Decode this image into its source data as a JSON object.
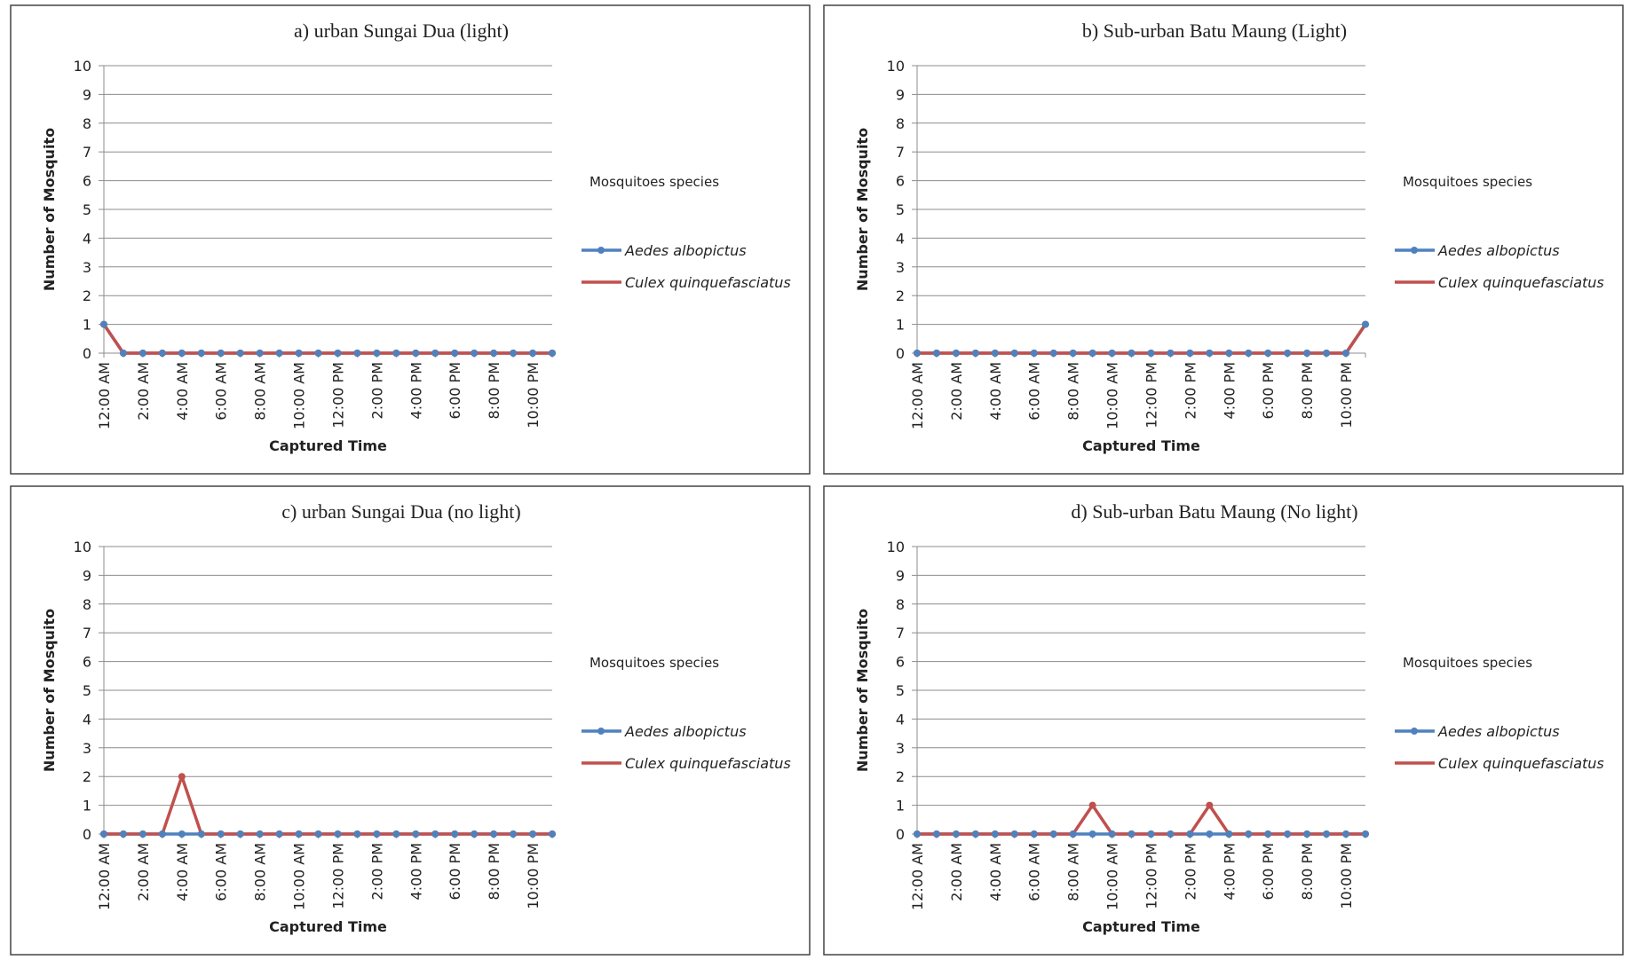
{
  "chart_data": [
    {
      "type": "line",
      "title": "a) urban Sungai Dua (light)",
      "xlabel": "Captured Time",
      "ylabel": "Number of Mosquito",
      "legend_title": "Mosquitoes species",
      "categories": [
        "12:00 AM",
        null,
        "2:00 AM",
        null,
        "4:00 AM",
        null,
        "6:00 AM",
        null,
        "8:00 AM",
        null,
        "10:00 AM",
        null,
        "12:00 PM",
        null,
        "2:00 PM",
        null,
        "4:00 PM",
        null,
        "6:00 PM",
        null,
        "8:00 PM",
        null,
        "10:00 PM",
        null
      ],
      "series": [
        {
          "name": "Aedes albopictus",
          "color": "#4f81bd",
          "values": [
            1,
            0,
            0,
            0,
            0,
            0,
            0,
            0,
            0,
            0,
            0,
            0,
            0,
            0,
            0,
            0,
            0,
            0,
            0,
            0,
            0,
            0,
            0,
            0
          ]
        },
        {
          "name": "Culex quinquefasciatus",
          "color": "#c0504d",
          "values": [
            1,
            0,
            0,
            0,
            0,
            0,
            0,
            0,
            0,
            0,
            0,
            0,
            0,
            0,
            0,
            0,
            0,
            0,
            0,
            0,
            0,
            0,
            0,
            0
          ]
        }
      ],
      "ylim": [
        0,
        10
      ],
      "yticks": [
        0,
        1,
        2,
        3,
        4,
        5,
        6,
        7,
        8,
        9,
        10
      ],
      "grid": true
    },
    {
      "type": "line",
      "title": "b) Sub-urban Batu Maung (Light)",
      "xlabel": "Captured Time",
      "ylabel": "Number of Mosquito",
      "legend_title": "Mosquitoes species",
      "categories": [
        "12:00 AM",
        null,
        "2:00 AM",
        null,
        "4:00 AM",
        null,
        "6:00 AM",
        null,
        "8:00 AM",
        null,
        "10:00 AM",
        null,
        "12:00 PM",
        null,
        "2:00 PM",
        null,
        "4:00 PM",
        null,
        "6:00 PM",
        null,
        "8:00 PM",
        null,
        "10:00 PM",
        null
      ],
      "series": [
        {
          "name": "Aedes albopictus",
          "color": "#4f81bd",
          "values": [
            0,
            0,
            0,
            0,
            0,
            0,
            0,
            0,
            0,
            0,
            0,
            0,
            0,
            0,
            0,
            0,
            0,
            0,
            0,
            0,
            0,
            0,
            0,
            1
          ]
        },
        {
          "name": "Culex quinquefasciatus",
          "color": "#c0504d",
          "values": [
            0,
            0,
            0,
            0,
            0,
            0,
            0,
            0,
            0,
            0,
            0,
            0,
            0,
            0,
            0,
            0,
            0,
            0,
            0,
            0,
            0,
            0,
            0,
            1
          ]
        }
      ],
      "ylim": [
        0,
        10
      ],
      "yticks": [
        0,
        1,
        2,
        3,
        4,
        5,
        6,
        7,
        8,
        9,
        10
      ],
      "grid": true
    },
    {
      "type": "line",
      "title": "c) urban Sungai Dua (no light)",
      "xlabel": "Captured Time",
      "ylabel": "Number of Mosquito",
      "legend_title": "Mosquitoes species",
      "categories": [
        "12:00 AM",
        null,
        "2:00 AM",
        null,
        "4:00 AM",
        null,
        "6:00 AM",
        null,
        "8:00 AM",
        null,
        "10:00 AM",
        null,
        "12:00 PM",
        null,
        "2:00 PM",
        null,
        "4:00 PM",
        null,
        "6:00 PM",
        null,
        "8:00 PM",
        null,
        "10:00 PM",
        null
      ],
      "series": [
        {
          "name": "Aedes albopictus",
          "color": "#4f81bd",
          "values": [
            0,
            0,
            0,
            0,
            0,
            0,
            0,
            0,
            0,
            0,
            0,
            0,
            0,
            0,
            0,
            0,
            0,
            0,
            0,
            0,
            0,
            0,
            0,
            0
          ]
        },
        {
          "name": "Culex quinquefasciatus",
          "color": "#c0504d",
          "values": [
            0,
            0,
            0,
            0,
            2,
            0,
            0,
            0,
            0,
            0,
            0,
            0,
            0,
            0,
            0,
            0,
            0,
            0,
            0,
            0,
            0,
            0,
            0,
            0
          ]
        }
      ],
      "ylim": [
        0,
        10
      ],
      "yticks": [
        0,
        1,
        2,
        3,
        4,
        5,
        6,
        7,
        8,
        9,
        10
      ],
      "grid": true
    },
    {
      "type": "line",
      "title": "d) Sub-urban Batu Maung (No light)",
      "xlabel": "Captured Time",
      "ylabel": "Number of Mosquito",
      "legend_title": "Mosquitoes species",
      "categories": [
        "12:00 AM",
        null,
        "2:00 AM",
        null,
        "4:00 AM",
        null,
        "6:00 AM",
        null,
        "8:00 AM",
        null,
        "10:00 AM",
        null,
        "12:00 PM",
        null,
        "2:00 PM",
        null,
        "4:00 PM",
        null,
        "6:00 PM",
        null,
        "8:00 PM",
        null,
        "10:00 PM",
        null
      ],
      "series": [
        {
          "name": "Aedes albopictus",
          "color": "#4f81bd",
          "values": [
            0,
            0,
            0,
            0,
            0,
            0,
            0,
            0,
            0,
            0,
            0,
            0,
            0,
            0,
            0,
            0,
            0,
            0,
            0,
            0,
            0,
            0,
            0,
            0
          ]
        },
        {
          "name": "Culex quinquefasciatus",
          "color": "#c0504d",
          "values": [
            0,
            0,
            0,
            0,
            0,
            0,
            0,
            0,
            0,
            1,
            0,
            0,
            0,
            0,
            0,
            1,
            0,
            0,
            0,
            0,
            0,
            0,
            0,
            0
          ]
        }
      ],
      "ylim": [
        0,
        10
      ],
      "yticks": [
        0,
        1,
        2,
        3,
        4,
        5,
        6,
        7,
        8,
        9,
        10
      ],
      "grid": true
    }
  ]
}
